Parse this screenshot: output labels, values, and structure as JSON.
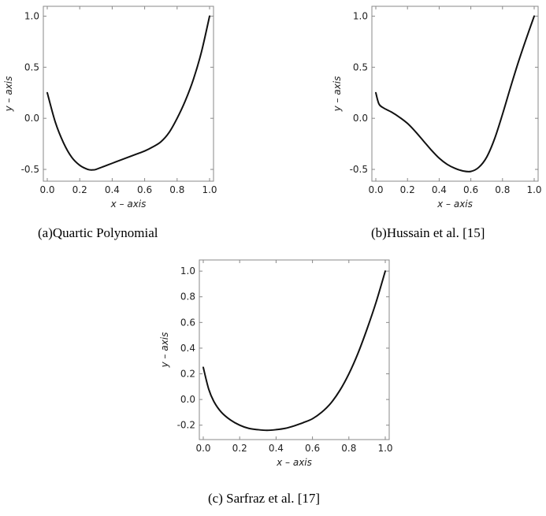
{
  "captions": {
    "a": "(a)Quartic Polynomial",
    "b": "(b)Hussain et al. [15]",
    "c": "(c) Sarfraz et al. [17]"
  },
  "colors": {
    "curve": "#111111",
    "frame": "#888888",
    "text": "#222222"
  },
  "chart_data": [
    {
      "type": "line",
      "title": "",
      "xlabel": "x – axis",
      "ylabel": "y – axis",
      "xlim": [
        0,
        1
      ],
      "ylim": [
        -0.6,
        1.05
      ],
      "xticks": [
        0.0,
        0.2,
        0.4,
        0.6,
        0.8,
        1.0
      ],
      "xtick_labels": [
        "0.0",
        "0.2",
        "0.4",
        "0.6",
        "0.8",
        "1.0"
      ],
      "yticks": [
        -0.5,
        0.0,
        0.5,
        1.0
      ],
      "ytick_labels": [
        "-0.5",
        "0.0",
        "0.5",
        "1.0"
      ],
      "grid": false,
      "series": [
        {
          "x": [
            0.0,
            0.05,
            0.1,
            0.15,
            0.2,
            0.25,
            0.28,
            0.3,
            0.35,
            0.4,
            0.45,
            0.5,
            0.55,
            0.6,
            0.65,
            0.7,
            0.75,
            0.8,
            0.85,
            0.9,
            0.95,
            1.0
          ],
          "y": [
            0.25,
            -0.04,
            -0.24,
            -0.38,
            -0.46,
            -0.5,
            -0.505,
            -0.5,
            -0.47,
            -0.44,
            -0.41,
            -0.38,
            -0.35,
            -0.32,
            -0.28,
            -0.23,
            -0.14,
            0.0,
            0.17,
            0.38,
            0.65,
            1.0
          ]
        }
      ]
    },
    {
      "type": "line",
      "title": "",
      "xlabel": "x – axis",
      "ylabel": "y – axis",
      "xlim": [
        0,
        1
      ],
      "ylim": [
        -0.6,
        1.05
      ],
      "xticks": [
        0.0,
        0.2,
        0.4,
        0.6,
        0.8,
        1.0
      ],
      "xtick_labels": [
        "0.0",
        "0.2",
        "0.4",
        "0.6",
        "0.8",
        "1.0"
      ],
      "yticks": [
        -0.5,
        0.0,
        0.5,
        1.0
      ],
      "ytick_labels": [
        "-0.5",
        "0.0",
        "0.5",
        "1.0"
      ],
      "grid": false,
      "series": [
        {
          "x": [
            0.0,
            0.02,
            0.05,
            0.1,
            0.15,
            0.2,
            0.25,
            0.3,
            0.35,
            0.4,
            0.45,
            0.5,
            0.55,
            0.6,
            0.65,
            0.7,
            0.75,
            0.8,
            0.85,
            0.9,
            0.95,
            1.0
          ],
          "y": [
            0.25,
            0.14,
            0.1,
            0.06,
            0.01,
            -0.05,
            -0.13,
            -0.22,
            -0.31,
            -0.39,
            -0.45,
            -0.49,
            -0.515,
            -0.52,
            -0.48,
            -0.38,
            -0.2,
            0.04,
            0.3,
            0.55,
            0.78,
            1.0
          ]
        }
      ]
    },
    {
      "type": "line",
      "title": "",
      "xlabel": "x – axis",
      "ylabel": "y – axis",
      "xlim": [
        0,
        1
      ],
      "ylim": [
        -0.3,
        1.05
      ],
      "xticks": [
        0.0,
        0.2,
        0.4,
        0.6,
        0.8,
        1.0
      ],
      "xtick_labels": [
        "0.0",
        "0.2",
        "0.4",
        "0.6",
        "0.8",
        "1.0"
      ],
      "yticks": [
        -0.2,
        0.0,
        0.2,
        0.4,
        0.6,
        0.8,
        1.0
      ],
      "ytick_labels": [
        "-0.2",
        "0.0",
        "0.2",
        "0.4",
        "0.6",
        "0.8",
        "1.0"
      ],
      "grid": false,
      "series": [
        {
          "x": [
            0.0,
            0.03,
            0.06,
            0.1,
            0.15,
            0.2,
            0.25,
            0.3,
            0.35,
            0.4,
            0.45,
            0.5,
            0.55,
            0.6,
            0.65,
            0.7,
            0.75,
            0.8,
            0.85,
            0.9,
            0.95,
            1.0
          ],
          "y": [
            0.25,
            0.08,
            -0.02,
            -0.1,
            -0.16,
            -0.2,
            -0.225,
            -0.235,
            -0.24,
            -0.235,
            -0.225,
            -0.205,
            -0.18,
            -0.15,
            -0.1,
            -0.03,
            0.07,
            0.2,
            0.36,
            0.55,
            0.76,
            1.0
          ]
        }
      ]
    }
  ]
}
